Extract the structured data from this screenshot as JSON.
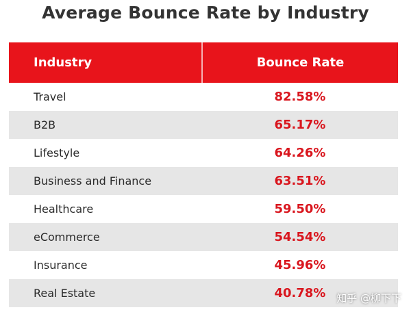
{
  "title": "Average Bounce Rate by Industry",
  "table": {
    "headers": [
      "Industry",
      "Bounce Rate"
    ],
    "rows": [
      {
        "industry": "Travel",
        "rate": "82.58%"
      },
      {
        "industry": "B2B",
        "rate": "65.17%"
      },
      {
        "industry": "Lifestyle",
        "rate": "64.26%"
      },
      {
        "industry": "Business and Finance",
        "rate": "63.51%"
      },
      {
        "industry": "Healthcare",
        "rate": "59.50%"
      },
      {
        "industry": "eCommerce",
        "rate": "54.54%"
      },
      {
        "industry": "Insurance",
        "rate": "45.96%"
      },
      {
        "industry": "Real Estate",
        "rate": "40.78%"
      }
    ]
  },
  "chart_data": {
    "type": "table",
    "title": "Average Bounce Rate by Industry",
    "columns": [
      "Industry",
      "Bounce Rate"
    ],
    "categories": [
      "Travel",
      "B2B",
      "Lifestyle",
      "Business and Finance",
      "Healthcare",
      "eCommerce",
      "Insurance",
      "Real Estate"
    ],
    "values": [
      82.58,
      65.17,
      64.26,
      63.51,
      59.5,
      54.54,
      45.96,
      40.78
    ],
    "unit": "%"
  },
  "watermark": "知乎 @柳下下",
  "colors": {
    "header_bg": "#e8141b",
    "rate_text": "#d9161e",
    "alt_row_bg": "#e6e6e6"
  }
}
